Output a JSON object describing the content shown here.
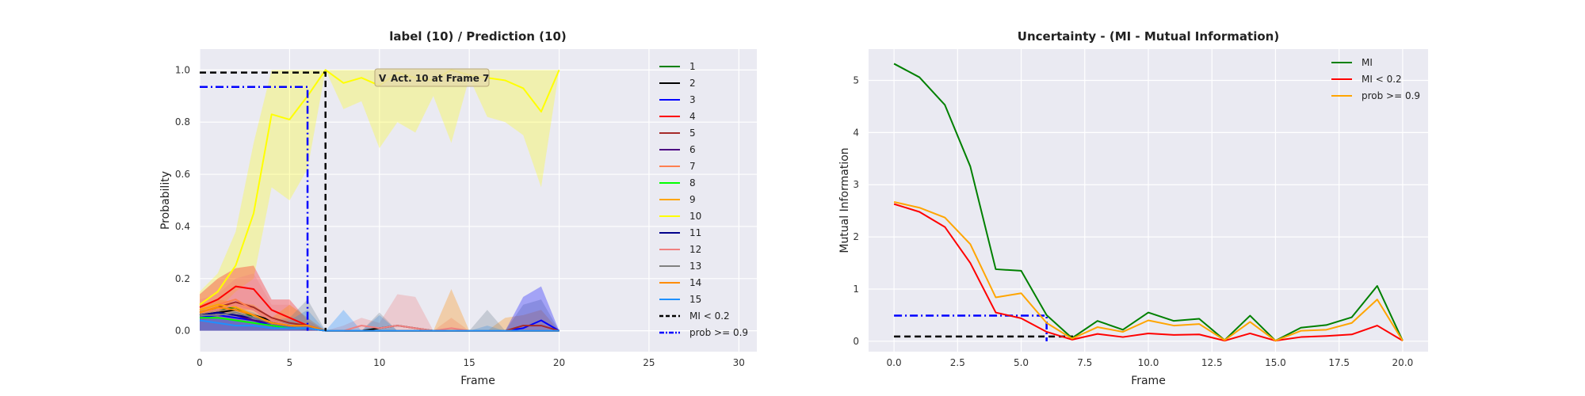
{
  "chart_data": [
    {
      "type": "line",
      "title": "label (10) / Prediction (10)",
      "xlabel": "Frame",
      "ylabel": "Probability",
      "xlim": [
        0,
        31
      ],
      "ylim": [
        -0.08,
        1.08
      ],
      "xticks": [
        "0",
        "5",
        "10",
        "15",
        "20",
        "25",
        "30"
      ],
      "yticks": [
        "0.0",
        "0.2",
        "0.4",
        "0.6",
        "0.8",
        "1.0"
      ],
      "grid": true,
      "legend_position": "right",
      "x": [
        0,
        1,
        2,
        3,
        4,
        5,
        6,
        7,
        8,
        9,
        10,
        11,
        12,
        13,
        14,
        15,
        16,
        17,
        18,
        19,
        20
      ],
      "series": [
        {
          "name": "1",
          "color": "#008000",
          "values": [
            0.07,
            0.08,
            0.09,
            0.05,
            0.03,
            0.02,
            0.01,
            0,
            0,
            0,
            0,
            0,
            0,
            0,
            0,
            0,
            0,
            0,
            0,
            0,
            0
          ]
        },
        {
          "name": "2",
          "color": "#000000",
          "values": [
            0.06,
            0.07,
            0.08,
            0.06,
            0.04,
            0.02,
            0.01,
            0,
            0,
            0,
            0.01,
            0.02,
            0.01,
            0,
            0,
            0,
            0,
            0,
            0,
            0,
            0
          ]
        },
        {
          "name": "3",
          "color": "#0000ff",
          "values": [
            0.05,
            0.06,
            0.05,
            0.04,
            0.02,
            0.01,
            0.01,
            0,
            0,
            0,
            0,
            0,
            0,
            0,
            0,
            0,
            0,
            0,
            0.01,
            0.04,
            0
          ]
        },
        {
          "name": "4",
          "color": "#ff0000",
          "values": [
            0.09,
            0.12,
            0.17,
            0.16,
            0.08,
            0.05,
            0.02,
            0,
            0,
            0,
            0,
            0,
            0,
            0,
            0,
            0,
            0,
            0,
            0,
            0,
            0
          ]
        },
        {
          "name": "5",
          "color": "#a52a2a",
          "values": [
            0.07,
            0.09,
            0.11,
            0.09,
            0.05,
            0.03,
            0.02,
            0,
            0,
            0,
            0,
            0,
            0,
            0,
            0,
            0,
            0,
            0,
            0.02,
            0.02,
            0
          ]
        },
        {
          "name": "6",
          "color": "#4b0082",
          "values": [
            0.06,
            0.07,
            0.06,
            0.04,
            0.03,
            0.02,
            0.01,
            0,
            0,
            0,
            0,
            0,
            0,
            0,
            0,
            0,
            0,
            0,
            0,
            0,
            0
          ]
        },
        {
          "name": "7",
          "color": "#ff7f50",
          "values": [
            0.08,
            0.1,
            0.12,
            0.08,
            0.04,
            0.02,
            0.01,
            0,
            0,
            0,
            0,
            0,
            0,
            0,
            0,
            0,
            0,
            0,
            0,
            0,
            0
          ]
        },
        {
          "name": "8",
          "color": "#00ff00",
          "values": [
            0.05,
            0.05,
            0.04,
            0.03,
            0.02,
            0.01,
            0.01,
            0,
            0,
            0,
            0,
            0,
            0,
            0,
            0,
            0,
            0,
            0,
            0,
            0,
            0
          ]
        },
        {
          "name": "9",
          "color": "#ffa500",
          "values": [
            0.08,
            0.1,
            0.09,
            0.06,
            0.03,
            0.02,
            0.01,
            0,
            0,
            0,
            0,
            0,
            0,
            0,
            0,
            0,
            0,
            0,
            0,
            0,
            0
          ]
        },
        {
          "name": "10",
          "color": "#ffff00",
          "values": [
            0.1,
            0.15,
            0.25,
            0.45,
            0.83,
            0.81,
            0.9,
            1.0,
            0.95,
            0.97,
            0.94,
            0.99,
            0.97,
            0.96,
            1.0,
            0.98,
            0.97,
            0.96,
            0.93,
            0.84,
            1.0
          ]
        },
        {
          "name": "11",
          "color": "#00008b",
          "values": [
            0.06,
            0.07,
            0.06,
            0.05,
            0.03,
            0.02,
            0.01,
            0,
            0,
            0,
            0,
            0,
            0,
            0,
            0,
            0,
            0,
            0,
            0,
            0,
            0
          ]
        },
        {
          "name": "12",
          "color": "#f08080",
          "values": [
            0.07,
            0.08,
            0.1,
            0.08,
            0.04,
            0.02,
            0.01,
            0,
            0,
            0.02,
            0.01,
            0.02,
            0.01,
            0,
            0.01,
            0,
            0,
            0,
            0,
            0,
            0
          ]
        },
        {
          "name": "13",
          "color": "#808080",
          "values": [
            0.06,
            0.06,
            0.07,
            0.05,
            0.03,
            0.02,
            0.01,
            0,
            0,
            0,
            0,
            0,
            0,
            0,
            0,
            0,
            0,
            0,
            0,
            0,
            0
          ]
        },
        {
          "name": "14",
          "color": "#ff8c00",
          "values": [
            0.07,
            0.09,
            0.08,
            0.06,
            0.03,
            0.02,
            0.02,
            0,
            0,
            0,
            0,
            0,
            0,
            0,
            0,
            0,
            0,
            0,
            0,
            0,
            0
          ]
        },
        {
          "name": "15",
          "color": "#1e90ff",
          "values": [
            0.04,
            0.03,
            0.02,
            0.02,
            0.01,
            0.01,
            0.01,
            0,
            0,
            0,
            0,
            0,
            0,
            0,
            0,
            0,
            0,
            0,
            0,
            0,
            0
          ]
        }
      ],
      "bands": [
        {
          "series": "10",
          "color": "#ffff00",
          "low": [
            0.05,
            0.08,
            0.15,
            0.2,
            0.55,
            0.5,
            0.62,
            1.0,
            0.85,
            0.88,
            0.7,
            0.8,
            0.76,
            0.9,
            0.72,
            0.97,
            0.82,
            0.8,
            0.75,
            0.55,
            1.0
          ],
          "high": [
            0.15,
            0.22,
            0.38,
            0.72,
            1.0,
            1.0,
            1.0,
            1.0,
            1.0,
            1.0,
            1.0,
            1.0,
            1.0,
            1.0,
            1.0,
            1.0,
            1.0,
            1.0,
            1.0,
            1.0,
            1.0
          ]
        },
        {
          "series": "4",
          "color": "#ff0000",
          "low": [
            0.04,
            0.05,
            0.08,
            0.08,
            0.02,
            0.01,
            0,
            0,
            0,
            0,
            0,
            0,
            0,
            0,
            0,
            0,
            0,
            0,
            0,
            0,
            0
          ],
          "high": [
            0.14,
            0.2,
            0.24,
            0.25,
            0.12,
            0.12,
            0.04,
            0,
            0,
            0,
            0,
            0,
            0,
            0,
            0,
            0,
            0,
            0,
            0,
            0,
            0
          ]
        },
        {
          "series": "12",
          "color": "#f08080",
          "low": [
            0,
            0,
            0,
            0,
            0,
            0,
            0,
            0,
            0,
            0,
            0,
            0,
            0,
            0,
            0,
            0,
            0,
            0,
            0,
            0,
            0
          ],
          "high": [
            0.12,
            0.14,
            0.2,
            0.22,
            0.1,
            0.1,
            0.05,
            0,
            0.02,
            0.05,
            0.03,
            0.14,
            0.13,
            0,
            0.05,
            0,
            0,
            0,
            0,
            0,
            0
          ]
        },
        {
          "series": "14",
          "color": "#ff8c00",
          "low": [
            0,
            0,
            0,
            0,
            0,
            0,
            0,
            0,
            0,
            0,
            0,
            0,
            0,
            0,
            0,
            0,
            0,
            0,
            0,
            0,
            0
          ],
          "high": [
            0.1,
            0.12,
            0.11,
            0.1,
            0.05,
            0.1,
            0.05,
            0,
            0,
            0,
            0,
            0,
            0,
            0,
            0.16,
            0,
            0,
            0.05,
            0.06,
            0.08,
            0
          ]
        },
        {
          "series": "15",
          "color": "#1e90ff",
          "low": [
            0,
            0,
            0,
            0,
            0,
            0,
            0,
            0,
            0,
            0,
            0,
            0,
            0,
            0,
            0,
            0,
            0,
            0,
            0,
            0,
            0
          ],
          "high": [
            0.06,
            0.05,
            0.04,
            0.03,
            0.02,
            0.04,
            0.08,
            0,
            0.08,
            0,
            0.06,
            0,
            0,
            0,
            0,
            0,
            0.02,
            0,
            0,
            0,
            0
          ]
        },
        {
          "series": "13",
          "color": "#708090",
          "low": [
            0,
            0,
            0,
            0,
            0,
            0,
            0,
            0,
            0,
            0,
            0,
            0,
            0,
            0,
            0,
            0,
            0,
            0,
            0,
            0,
            0
          ],
          "high": [
            0.08,
            0.08,
            0.09,
            0.07,
            0.04,
            0.05,
            0.12,
            0,
            0,
            0,
            0.07,
            0,
            0,
            0,
            0,
            0,
            0.08,
            0,
            0.1,
            0.12,
            0
          ]
        },
        {
          "series": "3",
          "color": "#0000ff",
          "low": [
            0,
            0,
            0,
            0,
            0,
            0,
            0,
            0,
            0,
            0,
            0,
            0,
            0,
            0,
            0,
            0,
            0,
            0,
            0,
            0,
            0
          ],
          "high": [
            0.06,
            0.07,
            0.06,
            0.05,
            0.03,
            0.02,
            0.02,
            0,
            0,
            0,
            0,
            0,
            0,
            0,
            0,
            0,
            0,
            0,
            0.13,
            0.17,
            0
          ]
        }
      ],
      "reference_lines": [
        {
          "name": "MI < 0.2",
          "color": "#000000",
          "dash": "dashed",
          "points": [
            [
              0,
              0.99
            ],
            [
              7,
              0.99
            ],
            [
              7,
              0
            ]
          ]
        },
        {
          "name": "prob >= 0.9",
          "color": "#0000ff",
          "dash": "dashdot",
          "points": [
            [
              0,
              0.935
            ],
            [
              6,
              0.935
            ],
            [
              6,
              0
            ]
          ]
        }
      ],
      "annotation": {
        "text": "Act. 10 at Frame 7",
        "marker": "V",
        "x": 10.5,
        "y": 0.935
      }
    },
    {
      "type": "line",
      "title": "Uncertainty - (MI - Mutual Information)",
      "xlabel": "Frame",
      "ylabel": "Mutual Information",
      "xlim": [
        -1,
        21
      ],
      "ylim": [
        -0.2,
        5.6
      ],
      "xticks": [
        "0.0",
        "2.5",
        "5.0",
        "7.5",
        "10.0",
        "12.5",
        "15.0",
        "17.5",
        "20.0"
      ],
      "yticks": [
        "0",
        "1",
        "2",
        "3",
        "4",
        "5"
      ],
      "grid": true,
      "legend_position": "top-right",
      "x": [
        0,
        1,
        2,
        3,
        4,
        5,
        6,
        7,
        8,
        9,
        10,
        11,
        12,
        13,
        14,
        15,
        16,
        17,
        18,
        19,
        20
      ],
      "series": [
        {
          "name": "MI",
          "color": "#008000",
          "values": [
            5.32,
            5.06,
            4.53,
            3.35,
            1.38,
            1.35,
            0.5,
            0.06,
            0.39,
            0.22,
            0.55,
            0.39,
            0.43,
            0.02,
            0.49,
            0.01,
            0.26,
            0.31,
            0.46,
            1.06,
            0.01
          ]
        },
        {
          "name": "MI < 0.2",
          "color": "#ff0000",
          "values": [
            2.63,
            2.48,
            2.19,
            1.5,
            0.55,
            0.44,
            0.18,
            0.03,
            0.14,
            0.08,
            0.15,
            0.12,
            0.13,
            0.01,
            0.15,
            0.01,
            0.08,
            0.1,
            0.13,
            0.3,
            0.01
          ]
        },
        {
          "name": "prob >= 0.9",
          "color": "#ffa500",
          "values": [
            2.67,
            2.56,
            2.37,
            1.86,
            0.84,
            0.92,
            0.35,
            0.05,
            0.27,
            0.18,
            0.4,
            0.3,
            0.33,
            0.02,
            0.37,
            0.01,
            0.2,
            0.22,
            0.35,
            0.8,
            0.01
          ]
        }
      ],
      "reference_lines": [
        {
          "color": "#000000",
          "dash": "dashed",
          "points": [
            [
              0,
              0.09
            ],
            [
              7,
              0.09
            ],
            [
              7,
              0
            ]
          ]
        },
        {
          "color": "#0000ff",
          "dash": "dashdot",
          "points": [
            [
              0,
              0.49
            ],
            [
              6,
              0.49
            ],
            [
              6,
              0
            ]
          ]
        }
      ]
    }
  ]
}
